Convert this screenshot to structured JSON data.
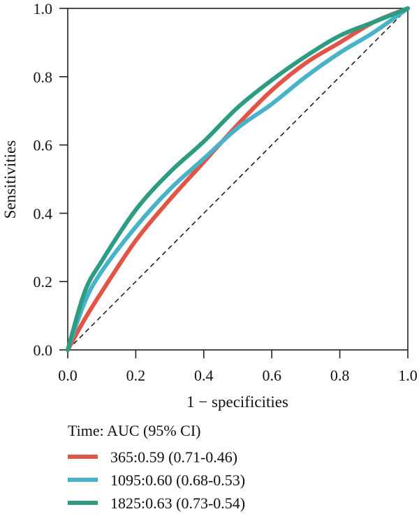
{
  "chart_data": {
    "type": "line",
    "title": "",
    "xlabel": "1 − specificities",
    "ylabel": "Sensitivities",
    "xlim": [
      0,
      1
    ],
    "ylim": [
      0,
      1
    ],
    "xticks": [
      "0.0",
      "0.2",
      "0.4",
      "0.6",
      "0.8",
      "1.0"
    ],
    "yticks": [
      "0.0",
      "0.2",
      "0.4",
      "0.6",
      "0.8",
      "1.0"
    ],
    "grid": false,
    "reference_line": {
      "style": "dashed",
      "color": "#111111",
      "points": [
        [
          0,
          0
        ],
        [
          1,
          1
        ]
      ]
    },
    "legend": {
      "title": "Time: AUC (95% CI)",
      "placement": "bottom",
      "entries": [
        "365:0.59 (0.71-0.46)",
        "1095:0.60 (0.68-0.53)",
        "1825:0.63 (0.73-0.54)"
      ]
    },
    "x": [
      0,
      0.05,
      0.1,
      0.2,
      0.3,
      0.4,
      0.5,
      0.6,
      0.7,
      0.8,
      0.9,
      1.0
    ],
    "series": [
      {
        "name": "365:0.59 (0.71-0.46)",
        "color": "#E05545",
        "values": [
          0,
          0.09,
          0.17,
          0.32,
          0.44,
          0.55,
          0.66,
          0.76,
          0.84,
          0.9,
          0.96,
          1.0
        ]
      },
      {
        "name": "1095:0.60 (0.68-0.53)",
        "color": "#48B2C8",
        "values": [
          0,
          0.14,
          0.23,
          0.36,
          0.47,
          0.56,
          0.65,
          0.72,
          0.8,
          0.87,
          0.93,
          1.0
        ]
      },
      {
        "name": "1825:0.63 (0.73-0.54)",
        "color": "#2E9C82",
        "values": [
          0,
          0.17,
          0.26,
          0.41,
          0.52,
          0.61,
          0.71,
          0.79,
          0.86,
          0.92,
          0.96,
          1.0
        ]
      }
    ]
  }
}
